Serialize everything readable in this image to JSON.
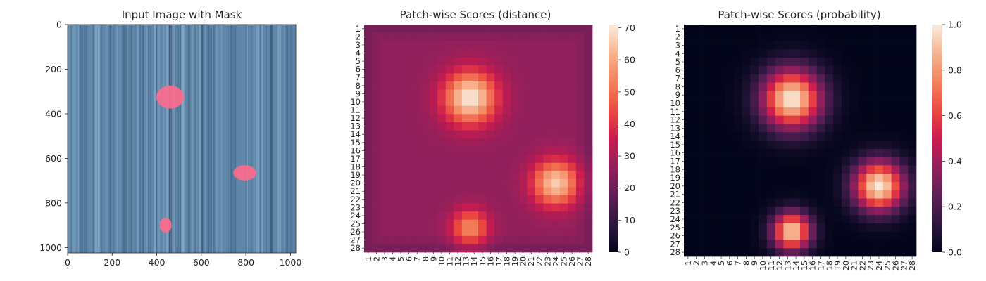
{
  "chart_data": [
    {
      "type": "image",
      "title": "Input Image with Mask",
      "xlim": [
        0,
        1024
      ],
      "ylim": [
        1024,
        0
      ],
      "xticks": [
        "0",
        "200",
        "400",
        "600",
        "800",
        "1000"
      ],
      "yticks": [
        "0",
        "200",
        "400",
        "600",
        "800",
        "1000"
      ],
      "background_color": "#5f87aa",
      "mask_color": "#ff6b8d",
      "mask_regions": [
        {
          "cx": 460,
          "cy": 325,
          "rx": 62,
          "ry": 52
        },
        {
          "cx": 795,
          "cy": 665,
          "rx": 52,
          "ry": 34
        },
        {
          "cx": 440,
          "cy": 900,
          "rx": 27,
          "ry": 33
        }
      ]
    },
    {
      "type": "heatmap",
      "title": "Patch-wise Scores (distance)",
      "grid_size": 28,
      "xticklabels": [
        "1",
        "2",
        "3",
        "4",
        "5",
        "6",
        "7",
        "8",
        "9",
        "10",
        "11",
        "12",
        "13",
        "14",
        "15",
        "16",
        "17",
        "18",
        "19",
        "20",
        "21",
        "22",
        "23",
        "24",
        "25",
        "26",
        "27",
        "28"
      ],
      "yticklabels": [
        "1",
        "2",
        "3",
        "4",
        "5",
        "6",
        "7",
        "8",
        "9",
        "10",
        "11",
        "12",
        "13",
        "14",
        "15",
        "16",
        "17",
        "18",
        "19",
        "20",
        "21",
        "22",
        "23",
        "24",
        "25",
        "26",
        "27",
        "28"
      ],
      "colorbar": {
        "min": 0,
        "max": 71,
        "ticks": [
          "0",
          "10",
          "20",
          "30",
          "40",
          "50",
          "60",
          "70"
        ],
        "colormap": "rocket"
      },
      "baseline": 26,
      "hotspots": [
        {
          "row": 9.5,
          "col": 13.5,
          "peak": 71,
          "sigma": 2.3
        },
        {
          "row": 20,
          "col": 24,
          "peak": 66,
          "sigma": 2.0
        },
        {
          "row": 25.5,
          "col": 13.5,
          "peak": 55,
          "sigma": 1.6
        }
      ]
    },
    {
      "type": "heatmap",
      "title": "Patch-wise Scores (probability)",
      "grid_size": 28,
      "xticklabels": [
        "1",
        "2",
        "3",
        "4",
        "5",
        "6",
        "7",
        "8",
        "9",
        "10",
        "11",
        "12",
        "13",
        "14",
        "15",
        "16",
        "17",
        "18",
        "19",
        "20",
        "21",
        "22",
        "23",
        "24",
        "25",
        "26",
        "27",
        "28"
      ],
      "yticklabels": [
        "1",
        "2",
        "3",
        "4",
        "5",
        "6",
        "7",
        "8",
        "9",
        "10",
        "11",
        "12",
        "13",
        "14",
        "15",
        "16",
        "17",
        "18",
        "19",
        "20",
        "21",
        "22",
        "23",
        "24",
        "25",
        "26",
        "27",
        "28"
      ],
      "colorbar": {
        "min": 0.0,
        "max": 1.0,
        "ticks": [
          "0.0",
          "0.2",
          "0.4",
          "0.6",
          "0.8",
          "1.0"
        ],
        "colormap": "rocket"
      },
      "baseline": 0.0,
      "hotspots": [
        {
          "row": 9.5,
          "col": 13.5,
          "peak": 1.0,
          "sigma": 2.5
        },
        {
          "row": 20,
          "col": 24,
          "peak": 1.0,
          "sigma": 2.1
        },
        {
          "row": 25.5,
          "col": 13.5,
          "peak": 0.95,
          "sigma": 1.6
        }
      ]
    }
  ]
}
